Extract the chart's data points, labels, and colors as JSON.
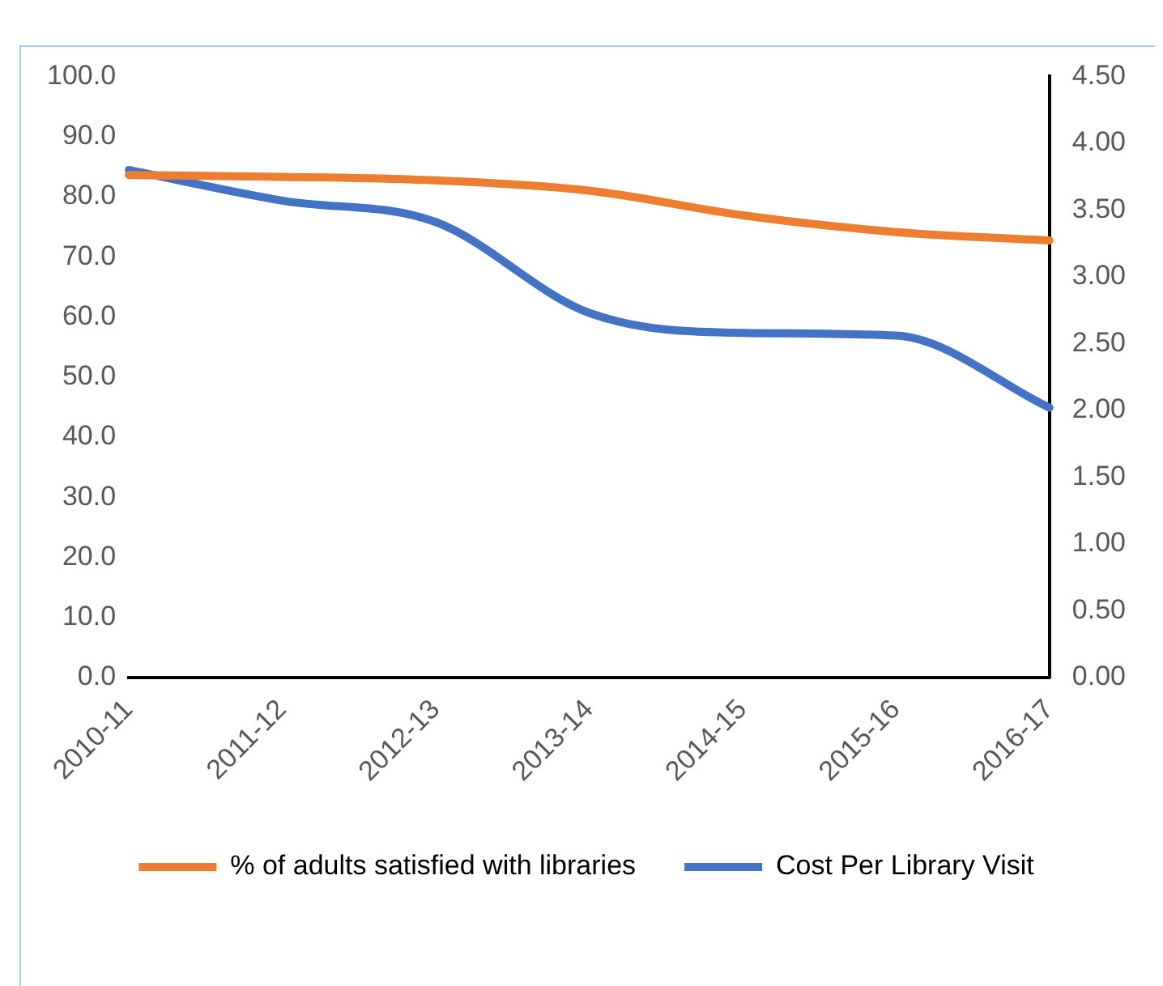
{
  "chart_data": {
    "type": "line",
    "categories": [
      "2010-11",
      "2011-12",
      "2012-13",
      "2013-14",
      "2014-15",
      "2015-16",
      "2016-17"
    ],
    "series": [
      {
        "name": "% of adults satisfied with libraries",
        "color": "#ed7d31",
        "values": [
          83.6,
          83.3,
          82.7,
          81.0,
          76.9,
          74.1,
          72.7
        ]
      },
      {
        "name": "Cost Per Library Visit",
        "color": "#4472c4",
        "axis": "y2",
        "values": [
          3.8,
          3.57,
          3.41,
          2.73,
          2.58,
          2.56,
          2.02
        ]
      }
    ],
    "ylim": [
      0,
      100
    ],
    "yticks": [
      {
        "value": 0,
        "label": "0.0"
      },
      {
        "value": 10,
        "label": "10.0"
      },
      {
        "value": 20,
        "label": "20.0"
      },
      {
        "value": 30,
        "label": "30.0"
      },
      {
        "value": 40,
        "label": "40.0"
      },
      {
        "value": 50,
        "label": "50.0"
      },
      {
        "value": 60,
        "label": "60.0"
      },
      {
        "value": 70,
        "label": "70.0"
      },
      {
        "value": 80,
        "label": "80.0"
      },
      {
        "value": 90,
        "label": "90.0"
      },
      {
        "value": 100,
        "label": "100.0"
      }
    ],
    "y2lim": [
      0,
      4.5
    ],
    "y2ticks": [
      {
        "value": 0,
        "label": "0.00"
      },
      {
        "value": 0.5,
        "label": "0.50"
      },
      {
        "value": 1,
        "label": "1.00"
      },
      {
        "value": 1.5,
        "label": "1.50"
      },
      {
        "value": 2,
        "label": "2.00"
      },
      {
        "value": 2.5,
        "label": "2.50"
      },
      {
        "value": 3,
        "label": "3.00"
      },
      {
        "value": 3.5,
        "label": "3.50"
      },
      {
        "value": 4,
        "label": "4.00"
      },
      {
        "value": 4.5,
        "label": "4.50"
      }
    ],
    "grid": false,
    "legend": "bottom",
    "marker": "none",
    "line_style": "solid"
  }
}
